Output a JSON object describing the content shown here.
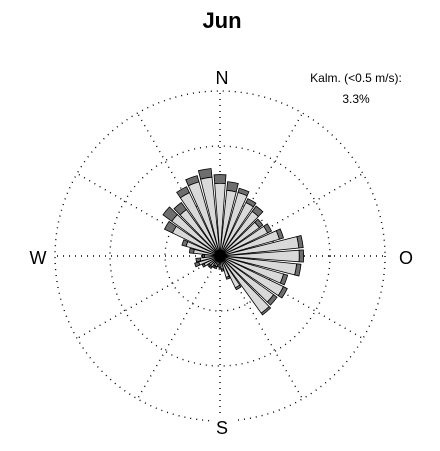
{
  "chart_data": {
    "type": "windrose",
    "title": "Jun",
    "directions": [
      "N",
      "W",
      "O",
      "S"
    ],
    "calm_label": "Kalm. (<0.5 m/s):",
    "calm_value": "3.3%",
    "grid": "dotted",
    "sector_count": 36,
    "rings": 3,
    "colors": {
      "inner": "#d9d9d9",
      "outer": "#6e6e6e",
      "outline": "#000000"
    },
    "sectors": [
      {
        "deg": 0,
        "inner": 0.33,
        "total": 0.37
      },
      {
        "deg": 10,
        "inner": 0.3,
        "total": 0.34
      },
      {
        "deg": 20,
        "inner": 0.3,
        "total": 0.32
      },
      {
        "deg": 30,
        "inner": 0.27,
        "total": 0.29
      },
      {
        "deg": 40,
        "inner": 0.25,
        "total": 0.28
      },
      {
        "deg": 50,
        "inner": 0.22,
        "total": 0.24
      },
      {
        "deg": 60,
        "inner": 0.24,
        "total": 0.26
      },
      {
        "deg": 70,
        "inner": 0.28,
        "total": 0.3
      },
      {
        "deg": 80,
        "inner": 0.36,
        "total": 0.38
      },
      {
        "deg": 90,
        "inner": 0.36,
        "total": 0.38
      },
      {
        "deg": 100,
        "inner": 0.35,
        "total": 0.37
      },
      {
        "deg": 110,
        "inner": 0.3,
        "total": 0.32
      },
      {
        "deg": 120,
        "inner": 0.32,
        "total": 0.34
      },
      {
        "deg": 130,
        "inner": 0.3,
        "total": 0.32
      },
      {
        "deg": 140,
        "inner": 0.32,
        "total": 0.33
      },
      {
        "deg": 150,
        "inner": 0.16,
        "total": 0.17
      },
      {
        "deg": 160,
        "inner": 0.1,
        "total": 0.11
      },
      {
        "deg": 170,
        "inner": 0.06,
        "total": 0.07
      },
      {
        "deg": 180,
        "inner": 0.05,
        "total": 0.06
      },
      {
        "deg": 190,
        "inner": 0.04,
        "total": 0.05
      },
      {
        "deg": 200,
        "inner": 0.05,
        "total": 0.06
      },
      {
        "deg": 210,
        "inner": 0.05,
        "total": 0.06
      },
      {
        "deg": 220,
        "inner": 0.06,
        "total": 0.07
      },
      {
        "deg": 230,
        "inner": 0.06,
        "total": 0.07
      },
      {
        "deg": 240,
        "inner": 0.08,
        "total": 0.09
      },
      {
        "deg": 250,
        "inner": 0.1,
        "total": 0.12
      },
      {
        "deg": 260,
        "inner": 0.09,
        "total": 0.11
      },
      {
        "deg": 270,
        "inner": 0.07,
        "total": 0.08
      },
      {
        "deg": 280,
        "inner": 0.12,
        "total": 0.14
      },
      {
        "deg": 290,
        "inner": 0.16,
        "total": 0.18
      },
      {
        "deg": 300,
        "inner": 0.24,
        "total": 0.28
      },
      {
        "deg": 310,
        "inner": 0.27,
        "total": 0.32
      },
      {
        "deg": 320,
        "inner": 0.26,
        "total": 0.3
      },
      {
        "deg": 330,
        "inner": 0.32,
        "total": 0.35
      },
      {
        "deg": 340,
        "inner": 0.35,
        "total": 0.38
      },
      {
        "deg": 350,
        "inner": 0.36,
        "total": 0.4
      }
    ]
  }
}
